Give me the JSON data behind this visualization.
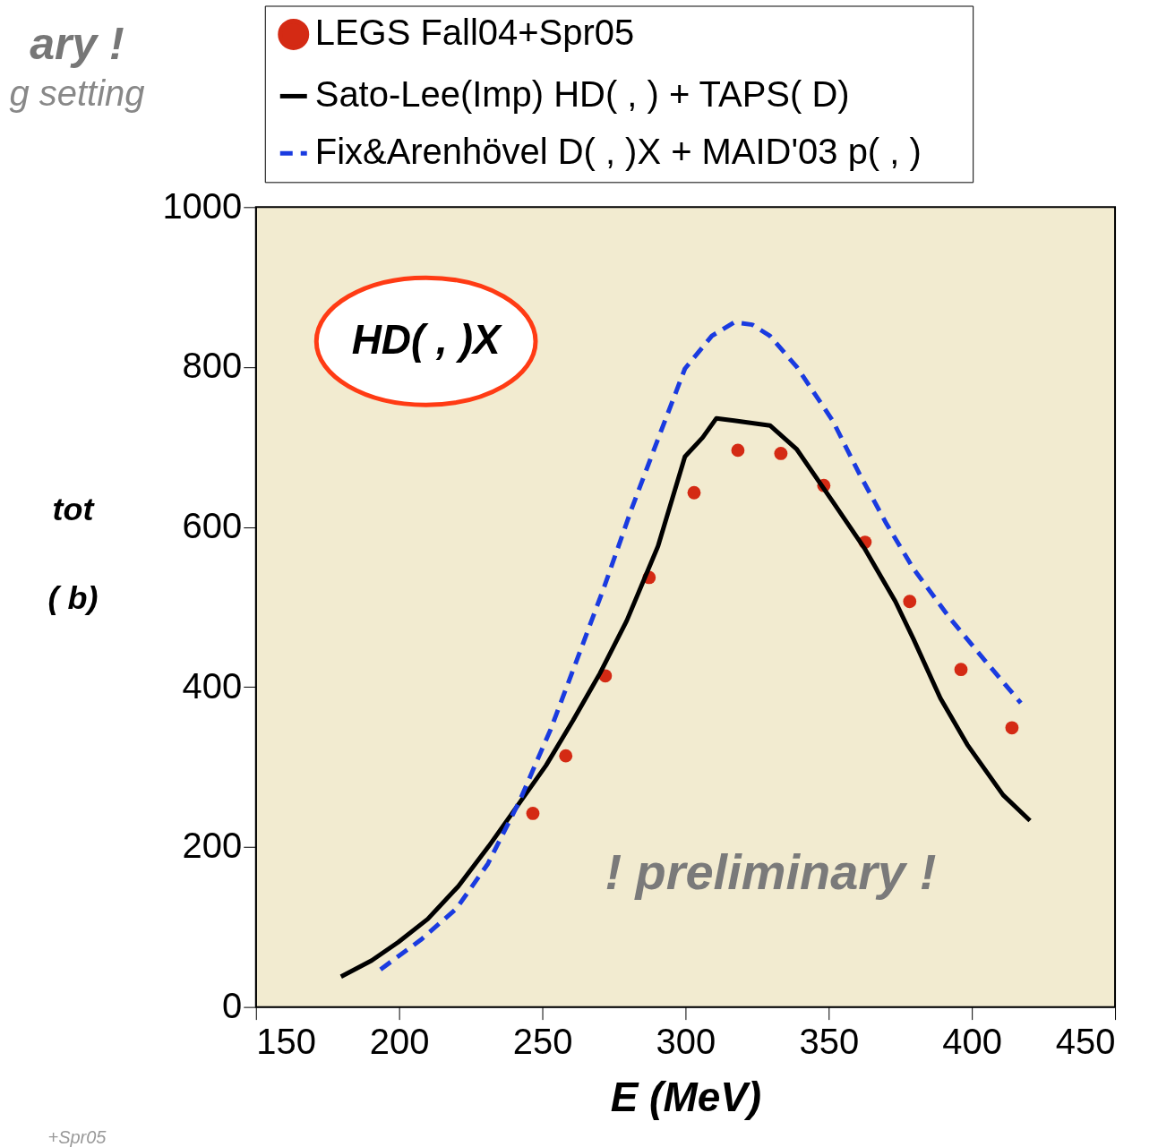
{
  "chart_data": {
    "type": "scatter",
    "xlabel": "E   (MeV)",
    "ylabel": "tot\n( b)",
    "xlim": [
      150,
      450
    ],
    "xticks": [
      150,
      200,
      250,
      300,
      350,
      400,
      450
    ],
    "ylim": [
      0,
      1000
    ],
    "yticks": [
      0,
      200,
      400,
      600,
      800,
      1000
    ],
    "grid": false,
    "legend": "top",
    "series": [
      {
        "name": "LEGS Fall04+Spr05",
        "marker": "circle",
        "color": "#d42a14",
        "x": [
          246.7,
          258.2,
          272,
          287.3,
          303,
          318.3,
          333.3,
          348.3,
          362.7,
          378.3,
          396.2,
          414
        ],
        "values": [
          242,
          314,
          414,
          537,
          643,
          696,
          692,
          652,
          581,
          507,
          422,
          349
        ]
      },
      {
        "name": "Sato-Lee(Imp) HD( ,   ) + TAPS(   D)",
        "type": "line",
        "line_style": "solid",
        "color": "#000000",
        "x": [
          179.7,
          190.4,
          199.7,
          210,
          220.7,
          231.3,
          242,
          251.3,
          260.7,
          270.1,
          279.5,
          290.4,
          299.8,
          306,
          310.8,
          317,
          329.5,
          338.9,
          351.4,
          362.4,
          373.3,
          379.6,
          389,
          398.4,
          410.9,
          420.3
        ],
        "values": [
          38,
          58,
          81,
          110,
          151,
          201,
          255,
          302,
          358,
          417,
          483,
          576,
          688,
          712,
          736,
          733,
          727,
          697,
          632,
          574,
          507,
          460,
          386,
          328,
          265,
          233
        ]
      },
      {
        "name": "Fix&Arenhövel D( ,   )X + MAID'03 p( ,   )",
        "type": "line",
        "line_style": "dashed",
        "color": "#1a3be0",
        "x": [
          193.5,
          207.6,
          220,
          231,
          242,
          252.9,
          262.3,
          271.7,
          281,
          290.4,
          299.8,
          309.2,
          317,
          323.3,
          329.5,
          338.9,
          351.4,
          360.8,
          370.2,
          379.6,
          392.1,
          404.6,
          417.1
        ],
        "values": [
          47,
          84,
          123,
          179,
          257,
          347,
          436,
          526,
          621,
          710,
          798,
          839,
          856,
          853,
          839,
          800,
          733,
          666,
          604,
          548,
          487,
          433,
          380
        ]
      }
    ],
    "annotations": [
      "HD( ,   )X",
      "! preliminary !",
      "ary !",
      "g setting",
      "+Spr05"
    ]
  }
}
